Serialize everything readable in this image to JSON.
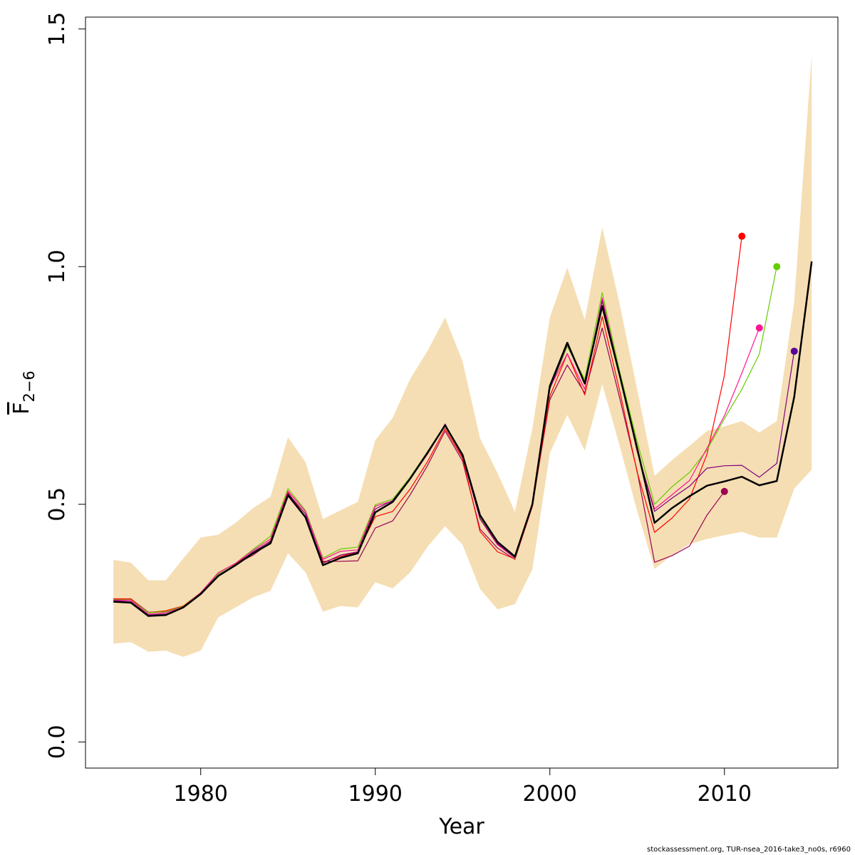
{
  "chart_data": {
    "type": "line",
    "xlabel": "Year",
    "ylabel_main": "F",
    "ylabel_sub": "2−6",
    "xlim": [
      1973.4,
      2016.5
    ],
    "ylim": [
      -0.055,
      1.525
    ],
    "x_ticks": [
      1980,
      1990,
      2000,
      2010
    ],
    "y_ticks": [
      0.0,
      0.5,
      1.0,
      1.5
    ],
    "x_tick_labels": [
      "1980",
      "1990",
      "2000",
      "2010"
    ],
    "y_tick_labels": [
      "0.0",
      "0.5",
      "1.0",
      "1.5"
    ],
    "grid": false,
    "band": {
      "color": "#f5deb3",
      "x": [
        1975,
        1976,
        1977,
        1978,
        1979,
        1980,
        1981,
        1982,
        1983,
        1984,
        1985,
        1986,
        1987,
        1988,
        1989,
        1990,
        1991,
        1992,
        1993,
        1994,
        1995,
        1996,
        1997,
        1998,
        1999,
        2000,
        2001,
        2002,
        2003,
        2004,
        2005,
        2006,
        2007,
        2008,
        2009,
        2010,
        2011,
        2012,
        2013,
        2014,
        2015
      ],
      "upper": [
        0.383,
        0.377,
        0.34,
        0.34,
        0.386,
        0.43,
        0.436,
        0.461,
        0.492,
        0.516,
        0.641,
        0.589,
        0.469,
        0.487,
        0.505,
        0.635,
        0.682,
        0.764,
        0.823,
        0.893,
        0.801,
        0.639,
        0.566,
        0.484,
        0.66,
        0.893,
        0.998,
        0.888,
        1.083,
        0.921,
        0.742,
        0.56,
        0.593,
        0.623,
        0.654,
        0.664,
        0.675,
        0.651,
        0.675,
        0.926,
        1.445
      ],
      "lower": [
        0.207,
        0.21,
        0.19,
        0.192,
        0.179,
        0.192,
        0.262,
        0.283,
        0.304,
        0.318,
        0.397,
        0.357,
        0.274,
        0.286,
        0.283,
        0.336,
        0.323,
        0.357,
        0.411,
        0.454,
        0.415,
        0.322,
        0.279,
        0.29,
        0.363,
        0.608,
        0.688,
        0.613,
        0.753,
        0.623,
        0.486,
        0.364,
        0.393,
        0.416,
        0.427,
        0.435,
        0.442,
        0.43,
        0.43,
        0.533,
        0.573
      ]
    },
    "series": [
      {
        "color": "#000000",
        "width": 2.5,
        "x": [
          1975,
          1976,
          1977,
          1978,
          1979,
          1980,
          1981,
          1982,
          1983,
          1984,
          1985,
          1986,
          1987,
          1988,
          1989,
          1990,
          1991,
          1992,
          1993,
          1994,
          1995,
          1996,
          1997,
          1998,
          1999,
          2000,
          2001,
          2002,
          2003,
          2004,
          2005,
          2006,
          2007,
          2008,
          2009,
          2010,
          2011,
          2012,
          2013,
          2014,
          2015
        ],
        "values": [
          0.295,
          0.293,
          0.265,
          0.267,
          0.283,
          0.311,
          0.349,
          0.372,
          0.397,
          0.418,
          0.519,
          0.473,
          0.372,
          0.387,
          0.397,
          0.483,
          0.505,
          0.554,
          0.609,
          0.666,
          0.604,
          0.477,
          0.421,
          0.39,
          0.5,
          0.749,
          0.84,
          0.754,
          0.917,
          0.772,
          0.618,
          0.461,
          0.492,
          0.517,
          0.539,
          0.548,
          0.558,
          0.54,
          0.549,
          0.726,
          1.011
        ]
      },
      {
        "color": "#9a0055",
        "width": 1.2,
        "end_dot": true,
        "x": [
          1975,
          1976,
          1977,
          1978,
          1979,
          1980,
          1981,
          1982,
          1983,
          1984,
          1985,
          1986,
          1987,
          1988,
          1989,
          1990,
          1991,
          1992,
          1993,
          1994,
          1995,
          1996,
          1997,
          1998,
          1999,
          2000,
          2001,
          2002,
          2003,
          2004,
          2005,
          2006,
          2007,
          2008,
          2009,
          2010
        ],
        "values": [
          0.3,
          0.301,
          0.273,
          0.274,
          0.282,
          0.314,
          0.349,
          0.374,
          0.393,
          0.42,
          0.523,
          0.472,
          0.38,
          0.38,
          0.381,
          0.45,
          0.465,
          0.52,
          0.582,
          0.654,
          0.591,
          0.448,
          0.408,
          0.384,
          0.498,
          0.72,
          0.793,
          0.734,
          0.871,
          0.724,
          0.57,
          0.378,
          0.392,
          0.412,
          0.477,
          0.527
        ]
      },
      {
        "color": "#ff0000",
        "width": 1.2,
        "end_dot": true,
        "x": [
          1975,
          1976,
          1977,
          1978,
          1979,
          1980,
          1981,
          1982,
          1983,
          1984,
          1985,
          1986,
          1987,
          1988,
          1989,
          1990,
          1991,
          1992,
          1993,
          1994,
          1995,
          1996,
          1997,
          1998,
          1999,
          2000,
          2001,
          2002,
          2003,
          2004,
          2005,
          2006,
          2007,
          2008,
          2009,
          2010,
          2011
        ],
        "values": [
          0.301,
          0.301,
          0.272,
          0.276,
          0.286,
          0.314,
          0.355,
          0.376,
          0.398,
          0.423,
          0.525,
          0.474,
          0.378,
          0.39,
          0.4,
          0.474,
          0.485,
          0.532,
          0.59,
          0.659,
          0.597,
          0.443,
          0.4,
          0.385,
          0.495,
          0.727,
          0.817,
          0.73,
          0.895,
          0.739,
          0.568,
          0.441,
          0.471,
          0.511,
          0.605,
          0.771,
          1.064
        ]
      },
      {
        "color": "#66cc00",
        "width": 1.2,
        "end_dot": true,
        "x": [
          1975,
          1976,
          1977,
          1978,
          1979,
          1980,
          1981,
          1982,
          1983,
          1984,
          1985,
          1986,
          1987,
          1988,
          1989,
          1990,
          1991,
          1992,
          1993,
          1994,
          1995,
          1996,
          1997,
          1998,
          1999,
          2000,
          2001,
          2002,
          2003,
          2004,
          2005,
          2006,
          2007,
          2008,
          2009,
          2010,
          2011,
          2012,
          2013
        ],
        "values": [
          0.299,
          0.299,
          0.272,
          0.274,
          0.285,
          0.314,
          0.354,
          0.376,
          0.405,
          0.433,
          0.533,
          0.487,
          0.387,
          0.406,
          0.41,
          0.499,
          0.511,
          0.557,
          0.611,
          0.667,
          0.605,
          0.472,
          0.418,
          0.386,
          0.5,
          0.742,
          0.832,
          0.763,
          0.945,
          0.78,
          0.632,
          0.5,
          0.537,
          0.567,
          0.614,
          0.68,
          0.742,
          0.816,
          1.0
        ]
      },
      {
        "color": "#ff1493",
        "width": 1.2,
        "end_dot": true,
        "x": [
          1975,
          1976,
          1977,
          1978,
          1979,
          1980,
          1981,
          1982,
          1983,
          1984,
          1985,
          1986,
          1987,
          1988,
          1989,
          1990,
          1991,
          1992,
          1993,
          1994,
          1995,
          1996,
          1997,
          1998,
          1999,
          2000,
          2001,
          2002,
          2003,
          2004,
          2005,
          2006,
          2007,
          2008,
          2009,
          2010,
          2011,
          2012
        ],
        "values": [
          0.298,
          0.298,
          0.269,
          0.272,
          0.284,
          0.314,
          0.356,
          0.376,
          0.403,
          0.427,
          0.528,
          0.485,
          0.384,
          0.401,
          0.404,
          0.496,
          0.507,
          0.553,
          0.606,
          0.666,
          0.6,
          0.469,
          0.415,
          0.387,
          0.496,
          0.745,
          0.817,
          0.742,
          0.934,
          0.772,
          0.611,
          0.49,
          0.52,
          0.55,
          0.618,
          0.686,
          0.776,
          0.871
        ]
      },
      {
        "color": "#800080",
        "width": 1.2,
        "end_dot": true,
        "dot_color": "#5a009a",
        "x": [
          1975,
          1976,
          1977,
          1978,
          1979,
          1980,
          1981,
          1982,
          1983,
          1984,
          1985,
          1986,
          1987,
          1988,
          1989,
          1990,
          1991,
          1992,
          1993,
          1994,
          1995,
          1996,
          1997,
          1998,
          1999,
          2000,
          2001,
          2002,
          2003,
          2004,
          2005,
          2006,
          2007,
          2008,
          2009,
          2010,
          2011,
          2012,
          2013,
          2014
        ],
        "values": [
          0.297,
          0.295,
          0.267,
          0.269,
          0.283,
          0.313,
          0.351,
          0.373,
          0.4,
          0.422,
          0.523,
          0.48,
          0.376,
          0.393,
          0.4,
          0.49,
          0.508,
          0.555,
          0.607,
          0.669,
          0.601,
          0.47,
          0.417,
          0.388,
          0.5,
          0.743,
          0.836,
          0.753,
          0.928,
          0.774,
          0.614,
          0.485,
          0.513,
          0.538,
          0.576,
          0.581,
          0.582,
          0.557,
          0.586,
          0.822
        ]
      }
    ]
  },
  "footer": "stockassessment.org, TUR-nsea_2016-take3_no0s, r6960"
}
